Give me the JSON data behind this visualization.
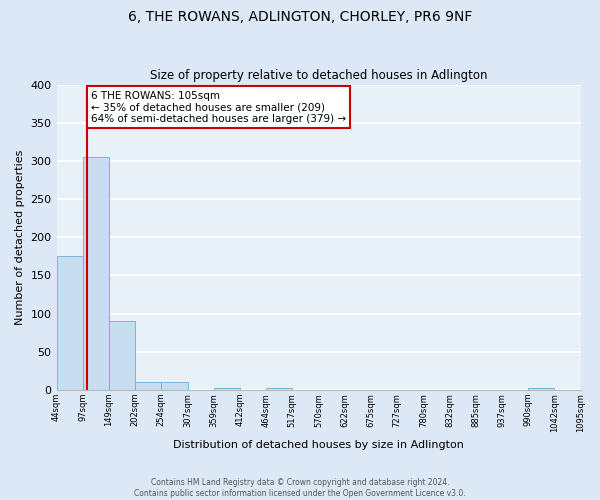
{
  "title": "6, THE ROWANS, ADLINGTON, CHORLEY, PR6 9NF",
  "subtitle": "Size of property relative to detached houses in Adlington",
  "xlabel": "Distribution of detached houses by size in Adlington",
  "ylabel": "Number of detached properties",
  "bin_labels": [
    "44sqm",
    "97sqm",
    "149sqm",
    "202sqm",
    "254sqm",
    "307sqm",
    "359sqm",
    "412sqm",
    "464sqm",
    "517sqm",
    "570sqm",
    "622sqm",
    "675sqm",
    "727sqm",
    "780sqm",
    "832sqm",
    "885sqm",
    "937sqm",
    "990sqm",
    "1042sqm",
    "1095sqm"
  ],
  "bar_values": [
    175,
    305,
    90,
    10,
    10,
    0,
    2,
    0,
    3,
    0,
    0,
    0,
    0,
    0,
    0,
    0,
    0,
    0,
    3,
    0
  ],
  "bar_color": "#c9ddf0",
  "bar_edge_color": "#6aaed6",
  "highlight_line_color": "#cc0000",
  "highlight_bin_idx": 1.15,
  "annotation_text": "6 THE ROWANS: 105sqm\n← 35% of detached houses are smaller (209)\n64% of semi-detached houses are larger (379) →",
  "annotation_box_color": "white",
  "annotation_box_edge": "#cc0000",
  "ylim": [
    0,
    400
  ],
  "yticks": [
    0,
    50,
    100,
    150,
    200,
    250,
    300,
    350,
    400
  ],
  "footer1": "Contains HM Land Registry data © Crown copyright and database right 2024.",
  "footer2": "Contains public sector information licensed under the Open Government Licence v3.0.",
  "fig_bg_color": "#dce8f5",
  "plot_bg_color": "#e8f0f8"
}
